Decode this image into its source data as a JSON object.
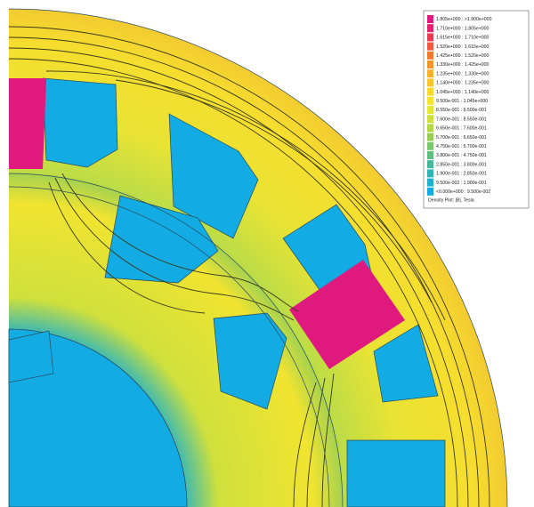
{
  "legend": {
    "rows": [
      {
        "label": "1.805e+000 : >1.900e+000",
        "color": "#e0197f"
      },
      {
        "label": "1.710e+000 : 1.805e+000",
        "color": "#e5236d"
      },
      {
        "label": "1.615e+000 : 1.710e+000",
        "color": "#ea3c55"
      },
      {
        "label": "1.520e+000 : 1.615e+000",
        "color": "#ef5a3e"
      },
      {
        "label": "1.425e+000 : 1.520e+000",
        "color": "#f2782e"
      },
      {
        "label": "1.330e+000 : 1.425e+000",
        "color": "#f5962a"
      },
      {
        "label": "1.235e+000 : 1.330e+000",
        "color": "#f7b02a"
      },
      {
        "label": "1.140e+000 : 1.235e+000",
        "color": "#f9c52a"
      },
      {
        "label": "1.045e+000 : 1.140e+000",
        "color": "#fad82c"
      },
      {
        "label": "9.500e-001 : 1.045e+000",
        "color": "#f5e52f"
      },
      {
        "label": "8.550e-001 : 9.500e-001",
        "color": "#e4e634"
      },
      {
        "label": "7.600e-001 : 8.550e-001",
        "color": "#cde03c"
      },
      {
        "label": "6.650e-001 : 7.600e-001",
        "color": "#b3d845"
      },
      {
        "label": "5.700e-001 : 6.650e-001",
        "color": "#96cf56"
      },
      {
        "label": "4.750e-001 : 5.700e-001",
        "color": "#7bc66a"
      },
      {
        "label": "3.800e-001 : 4.750e-001",
        "color": "#5fbe80"
      },
      {
        "label": "2.850e-001 : 3.800e-001",
        "color": "#45b898"
      },
      {
        "label": "1.900e-001 : 2.850e-001",
        "color": "#2db4b3"
      },
      {
        "label": "9.500e-002 : 1.900e-001",
        "color": "#1cb0cc"
      },
      {
        "label": "<0.000e+000 : 9.500e-002",
        "color": "#12abe3"
      }
    ],
    "caption": "Density Plot: |B|, Tesla"
  }
}
